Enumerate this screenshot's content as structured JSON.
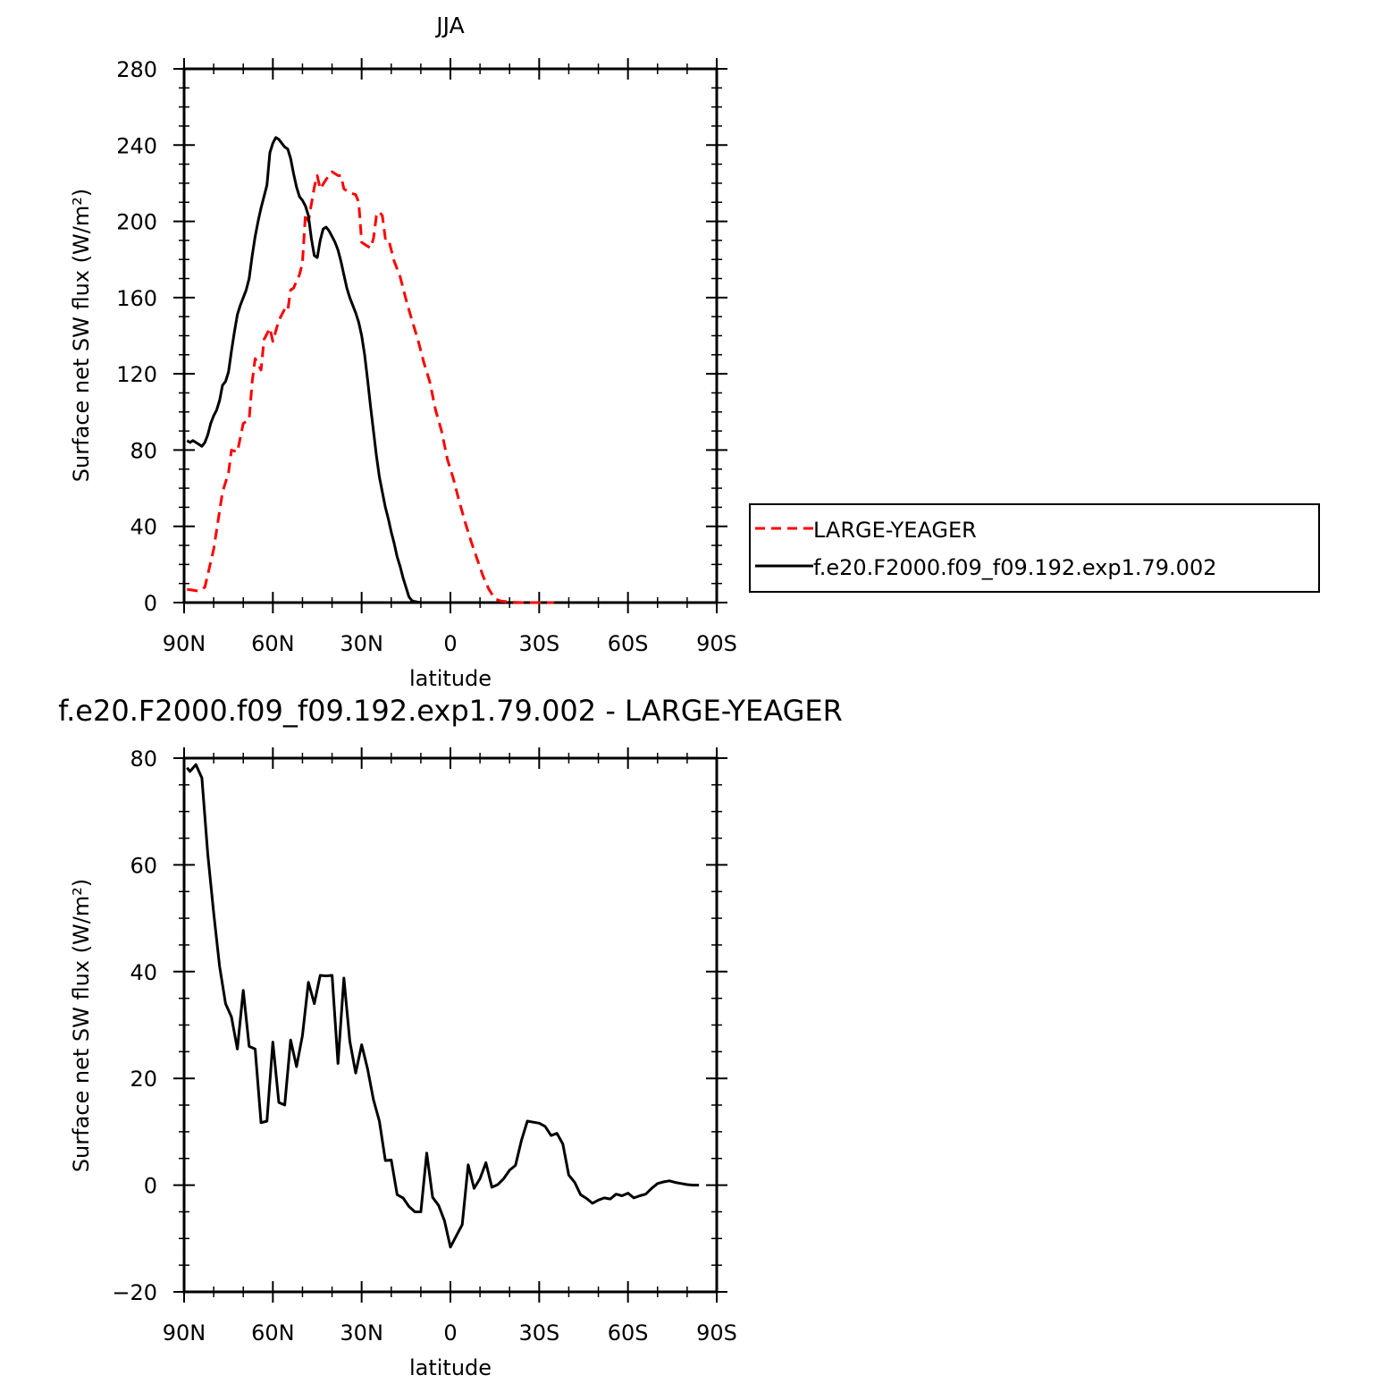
{
  "chart_data": [
    {
      "type": "line",
      "title": "JJA",
      "xlabel": "latitude",
      "ylabel": "Surface net SW flux (W/m²)",
      "xlim": [
        90,
        -90
      ],
      "ylim": [
        0,
        280
      ],
      "yticks": [
        0,
        40,
        80,
        120,
        160,
        200,
        240,
        280
      ],
      "xticks": [
        {
          "value": 90,
          "label": "90N"
        },
        {
          "value": 60,
          "label": "60N"
        },
        {
          "value": 30,
          "label": "30N"
        },
        {
          "value": 0,
          "label": "0"
        },
        {
          "value": -30,
          "label": "30S"
        },
        {
          "value": -60,
          "label": "60S"
        },
        {
          "value": -90,
          "label": "90S"
        }
      ],
      "legend": {
        "placement": "right",
        "entries": [
          "LARGE-YEAGER",
          "f.e20.F2000.f09_f09.192.exp1.79.002"
        ]
      },
      "series": [
        {
          "name": "LARGE-YEAGER",
          "color": "#ff0000",
          "style": "dashed",
          "points": [
            [
              89,
              7
            ],
            [
              85,
              6
            ],
            [
              83,
              8
            ],
            [
              80,
              28
            ],
            [
              77,
              58
            ],
            [
              75,
              68
            ],
            [
              74,
              80
            ],
            [
              72,
              79
            ],
            [
              70,
              94
            ],
            [
              68,
              96
            ],
            [
              67,
              116
            ],
            [
              66,
              128
            ],
            [
              64,
              122
            ],
            [
              63,
              138
            ],
            [
              61,
              144
            ],
            [
              60,
              137
            ],
            [
              58,
              148
            ],
            [
              56,
              154
            ],
            [
              55,
              153
            ],
            [
              54,
              164
            ],
            [
              53,
              165
            ],
            [
              51,
              172
            ],
            [
              50,
              178
            ],
            [
              49,
              204
            ],
            [
              48,
              200
            ],
            [
              46,
              218
            ],
            [
              45,
              224
            ],
            [
              44,
              217
            ],
            [
              42,
              222
            ],
            [
              40,
              226
            ],
            [
              38,
              224
            ],
            [
              37,
              224
            ],
            [
              36,
              217
            ],
            [
              34,
              215
            ],
            [
              32,
              214
            ],
            [
              31,
              210
            ],
            [
              30,
              189
            ],
            [
              29,
              188
            ],
            [
              27,
              186
            ],
            [
              26,
              191
            ],
            [
              25,
              203
            ],
            [
              24,
              205
            ],
            [
              23,
              203
            ],
            [
              22,
              191
            ],
            [
              21,
              191
            ],
            [
              19,
              179
            ],
            [
              17,
              171
            ],
            [
              15,
              159
            ],
            [
              13,
              148
            ],
            [
              11,
              138
            ],
            [
              9,
              126
            ],
            [
              7,
              116
            ],
            [
              5,
              101
            ],
            [
              3,
              90
            ],
            [
              1,
              75
            ],
            [
              -1,
              65
            ],
            [
              -3,
              53
            ],
            [
              -5,
              42
            ],
            [
              -7,
              32
            ],
            [
              -9,
              23
            ],
            [
              -11,
              14
            ],
            [
              -13,
              7
            ],
            [
              -15,
              2
            ],
            [
              -17,
              0.8
            ],
            [
              -20,
              0.3
            ],
            [
              -24,
              0
            ],
            [
              -30,
              0
            ],
            [
              -35,
              0
            ]
          ]
        },
        {
          "name": "f.e20.F2000.f09_f09.192.exp1.79.002",
          "color": "#000000",
          "style": "solid",
          "points": [
            [
              89,
              85
            ],
            [
              88,
              84
            ],
            [
              87,
              85
            ],
            [
              86,
              84
            ],
            [
              85,
              83
            ],
            [
              84,
              82
            ],
            [
              83,
              84
            ],
            [
              82,
              88
            ],
            [
              81,
              94
            ],
            [
              80,
              98
            ],
            [
              79,
              101
            ],
            [
              78,
              106
            ],
            [
              77,
              114
            ],
            [
              76,
              116
            ],
            [
              75,
              121
            ],
            [
              74,
              132
            ],
            [
              73,
              142
            ],
            [
              72,
              151
            ],
            [
              71,
              156
            ],
            [
              70,
              160
            ],
            [
              69,
              164
            ],
            [
              68,
              170
            ],
            [
              67,
              182
            ],
            [
              66,
              192
            ],
            [
              65,
              200
            ],
            [
              64,
              207
            ],
            [
              63,
              213
            ],
            [
              62,
              219
            ],
            [
              61,
              236
            ],
            [
              60,
              241
            ],
            [
              59,
              244
            ],
            [
              58,
              243
            ],
            [
              57,
              241
            ],
            [
              56,
              239
            ],
            [
              55,
              238
            ],
            [
              54,
              233
            ],
            [
              53,
              225
            ],
            [
              52,
              218
            ],
            [
              51,
              213
            ],
            [
              50,
              211
            ],
            [
              49,
              208
            ],
            [
              48,
              203
            ],
            [
              47,
              191
            ],
            [
              46,
              182
            ],
            [
              45,
              181
            ],
            [
              44,
              190
            ],
            [
              43,
              196
            ],
            [
              42,
              197
            ],
            [
              41,
              195
            ],
            [
              40,
              192
            ],
            [
              39,
              189
            ],
            [
              38,
              185
            ],
            [
              37,
              179
            ],
            [
              36,
              172
            ],
            [
              35,
              165
            ],
            [
              34,
              160
            ],
            [
              33,
              156
            ],
            [
              32,
              152
            ],
            [
              31,
              147
            ],
            [
              30,
              140
            ],
            [
              29,
              130
            ],
            [
              28,
              117
            ],
            [
              27,
              103
            ],
            [
              26,
              90
            ],
            [
              25,
              77
            ],
            [
              24,
              66
            ],
            [
              23,
              58
            ],
            [
              22,
              50
            ],
            [
              21,
              44
            ],
            [
              20,
              37
            ],
            [
              19,
              31
            ],
            [
              18,
              24
            ],
            [
              17,
              19
            ],
            [
              16,
              13
            ],
            [
              15,
              8
            ],
            [
              14,
              3
            ],
            [
              13,
              1
            ],
            [
              12,
              0.5
            ],
            [
              10,
              0
            ],
            [
              5,
              0
            ]
          ]
        }
      ]
    },
    {
      "type": "line",
      "title": "f.e20.F2000.f09_f09.192.exp1.79.002 - LARGE-YEAGER",
      "xlabel": "latitude",
      "ylabel": "Surface net SW flux (W/m²)",
      "xlim": [
        90,
        -90
      ],
      "ylim": [
        -20,
        80
      ],
      "yticks": [
        -20,
        0,
        20,
        40,
        60,
        80
      ],
      "xticks": [
        {
          "value": 90,
          "label": "90N"
        },
        {
          "value": 60,
          "label": "60N"
        },
        {
          "value": 30,
          "label": "30N"
        },
        {
          "value": 0,
          "label": "0"
        },
        {
          "value": -30,
          "label": "30S"
        },
        {
          "value": -60,
          "label": "60S"
        },
        {
          "value": -90,
          "label": "90S"
        }
      ],
      "series": [
        {
          "color": "#000000",
          "style": "solid",
          "points": [
            [
              89,
              78.2
            ],
            [
              88,
              77.5
            ],
            [
              86,
              78.8
            ],
            [
              84,
              76.3
            ],
            [
              82,
              62
            ],
            [
              80,
              51
            ],
            [
              78,
              41
            ],
            [
              76,
              34
            ],
            [
              74,
              31.5
            ],
            [
              72,
              25.5
            ],
            [
              70,
              36.5
            ],
            [
              68,
              26
            ],
            [
              66,
              25.5
            ],
            [
              64,
              11.7
            ],
            [
              62,
              12
            ],
            [
              60,
              26.8
            ],
            [
              58,
              15.5
            ],
            [
              56,
              15
            ],
            [
              54,
              27.2
            ],
            [
              52,
              22.2
            ],
            [
              50,
              28
            ],
            [
              48,
              38
            ],
            [
              46,
              34
            ],
            [
              44,
              39.3
            ],
            [
              42,
              39.2
            ],
            [
              40,
              39.3
            ],
            [
              38,
              22.8
            ],
            [
              36,
              38.8
            ],
            [
              34,
              27
            ],
            [
              32,
              21
            ],
            [
              30,
              26.3
            ],
            [
              28,
              21.8
            ],
            [
              26,
              16
            ],
            [
              24,
              12
            ],
            [
              22,
              4.6
            ],
            [
              20,
              4.7
            ],
            [
              18,
              -1.8
            ],
            [
              16,
              -2.4
            ],
            [
              14,
              -4
            ],
            [
              12,
              -5
            ],
            [
              10,
              -5
            ],
            [
              8,
              6
            ],
            [
              6,
              -2.3
            ],
            [
              4,
              -3.8
            ],
            [
              2,
              -6.7
            ],
            [
              0,
              -11.6
            ],
            [
              -2,
              -9.5
            ],
            [
              -4,
              -7.4
            ],
            [
              -6,
              3.8
            ],
            [
              -8,
              -0.6
            ],
            [
              -10,
              1.2
            ],
            [
              -12,
              4.2
            ],
            [
              -14,
              -0.4
            ],
            [
              -16,
              0.1
            ],
            [
              -18,
              1.2
            ],
            [
              -20,
              2.8
            ],
            [
              -22,
              3.7
            ],
            [
              -24,
              8.4
            ],
            [
              -26,
              12
            ],
            [
              -28,
              11.8
            ],
            [
              -30,
              11.6
            ],
            [
              -32,
              11
            ],
            [
              -34,
              9.3
            ],
            [
              -36,
              9.7
            ],
            [
              -38,
              7.7
            ],
            [
              -40,
              1.9
            ],
            [
              -42,
              0.5
            ],
            [
              -44,
              -1.8
            ],
            [
              -46,
              -2.5
            ],
            [
              -48,
              -3.4
            ],
            [
              -50,
              -2.8
            ],
            [
              -52,
              -2.4
            ],
            [
              -54,
              -2.6
            ],
            [
              -56,
              -1.7
            ],
            [
              -58,
              -2
            ],
            [
              -60,
              -1.5
            ],
            [
              -62,
              -2.4
            ],
            [
              -64,
              -2
            ],
            [
              -66,
              -1.7
            ],
            [
              -68,
              -0.6
            ],
            [
              -70,
              0.3
            ],
            [
              -72,
              0.6
            ],
            [
              -74,
              0.8
            ],
            [
              -76,
              0.5
            ],
            [
              -78,
              0.3
            ],
            [
              -80,
              0.1
            ],
            [
              -82,
              0
            ],
            [
              -84,
              0
            ]
          ]
        }
      ]
    }
  ]
}
